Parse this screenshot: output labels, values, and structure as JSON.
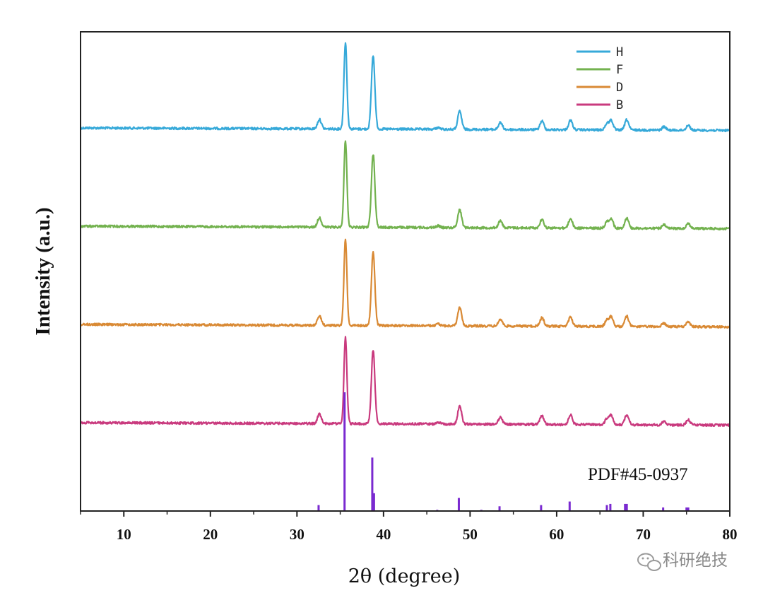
{
  "watermark": {
    "text": "科研绝技",
    "icon": "wechat-icon"
  },
  "chart_data": {
    "type": "line",
    "xlabel": "2θ (degree)",
    "ylabel": "Intensity (a.u.)",
    "xlim": [
      5,
      80
    ],
    "x_ticks": [
      10,
      20,
      30,
      40,
      50,
      60,
      70,
      80
    ],
    "y_ticks": [],
    "grid": false,
    "legend_position": "top-right",
    "peaks": [
      {
        "x": 32.6,
        "rel": 0.11
      },
      {
        "x": 35.6,
        "rel": 1.0
      },
      {
        "x": 38.8,
        "rel": 0.85
      },
      {
        "x": 46.3,
        "rel": 0.02
      },
      {
        "x": 48.8,
        "rel": 0.21
      },
      {
        "x": 53.5,
        "rel": 0.08
      },
      {
        "x": 58.3,
        "rel": 0.1
      },
      {
        "x": 61.6,
        "rel": 0.11
      },
      {
        "x": 65.8,
        "rel": 0.07
      },
      {
        "x": 66.3,
        "rel": 0.11
      },
      {
        "x": 68.1,
        "rel": 0.12
      },
      {
        "x": 72.4,
        "rel": 0.04
      },
      {
        "x": 75.2,
        "rel": 0.06
      }
    ],
    "series": [
      {
        "name": "H",
        "color": "#36a9d9"
      },
      {
        "name": "F",
        "color": "#73b24f"
      },
      {
        "name": "D",
        "color": "#d98a35"
      },
      {
        "name": "B",
        "color": "#c93a7e"
      }
    ],
    "reference": {
      "name": "PDF#45-0937",
      "color": "#7a2ad0",
      "lines": [
        {
          "x": 32.5,
          "rel": 0.05
        },
        {
          "x": 35.5,
          "rel": 1.0
        },
        {
          "x": 38.7,
          "rel": 0.45
        },
        {
          "x": 38.9,
          "rel": 0.15
        },
        {
          "x": 46.2,
          "rel": 0.01
        },
        {
          "x": 48.7,
          "rel": 0.11
        },
        {
          "x": 51.3,
          "rel": 0.01
        },
        {
          "x": 53.4,
          "rel": 0.04
        },
        {
          "x": 58.2,
          "rel": 0.05
        },
        {
          "x": 61.5,
          "rel": 0.08
        },
        {
          "x": 65.8,
          "rel": 0.05
        },
        {
          "x": 66.2,
          "rel": 0.06
        },
        {
          "x": 67.9,
          "rel": 0.06
        },
        {
          "x": 68.1,
          "rel": 0.06
        },
        {
          "x": 72.3,
          "rel": 0.03
        },
        {
          "x": 75.0,
          "rel": 0.03
        },
        {
          "x": 75.2,
          "rel": 0.03
        }
      ]
    }
  }
}
